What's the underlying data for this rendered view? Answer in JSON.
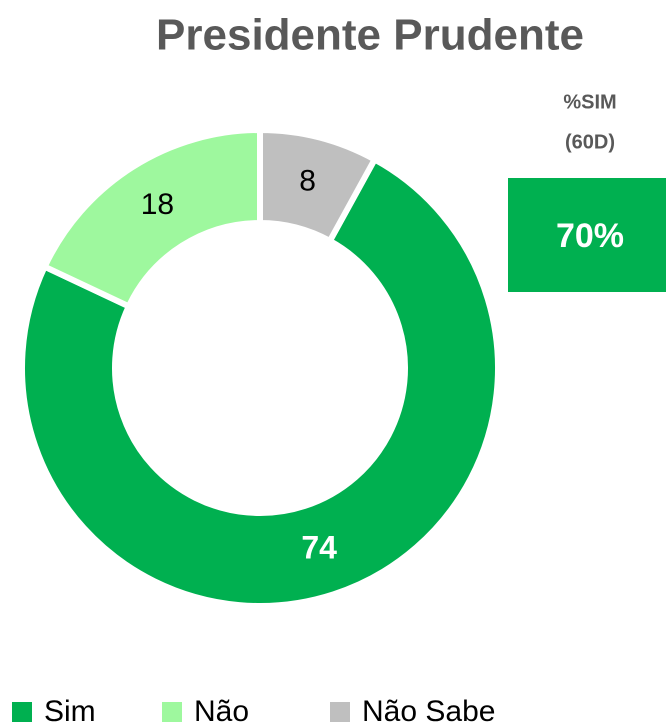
{
  "chart_data": {
    "type": "donut",
    "title": "Presidente Prudente",
    "categories": [
      "Sim",
      "Não",
      "Não Sabe"
    ],
    "values": [
      74,
      18,
      8
    ],
    "colors": [
      "#00b050",
      "#9ef89e",
      "#bfbfbf"
    ],
    "legend": "bottom",
    "kpi": {
      "label": [
        "%SIM",
        "(60D)"
      ],
      "value": 70,
      "value_label": "70%",
      "color": "#00b050"
    }
  }
}
